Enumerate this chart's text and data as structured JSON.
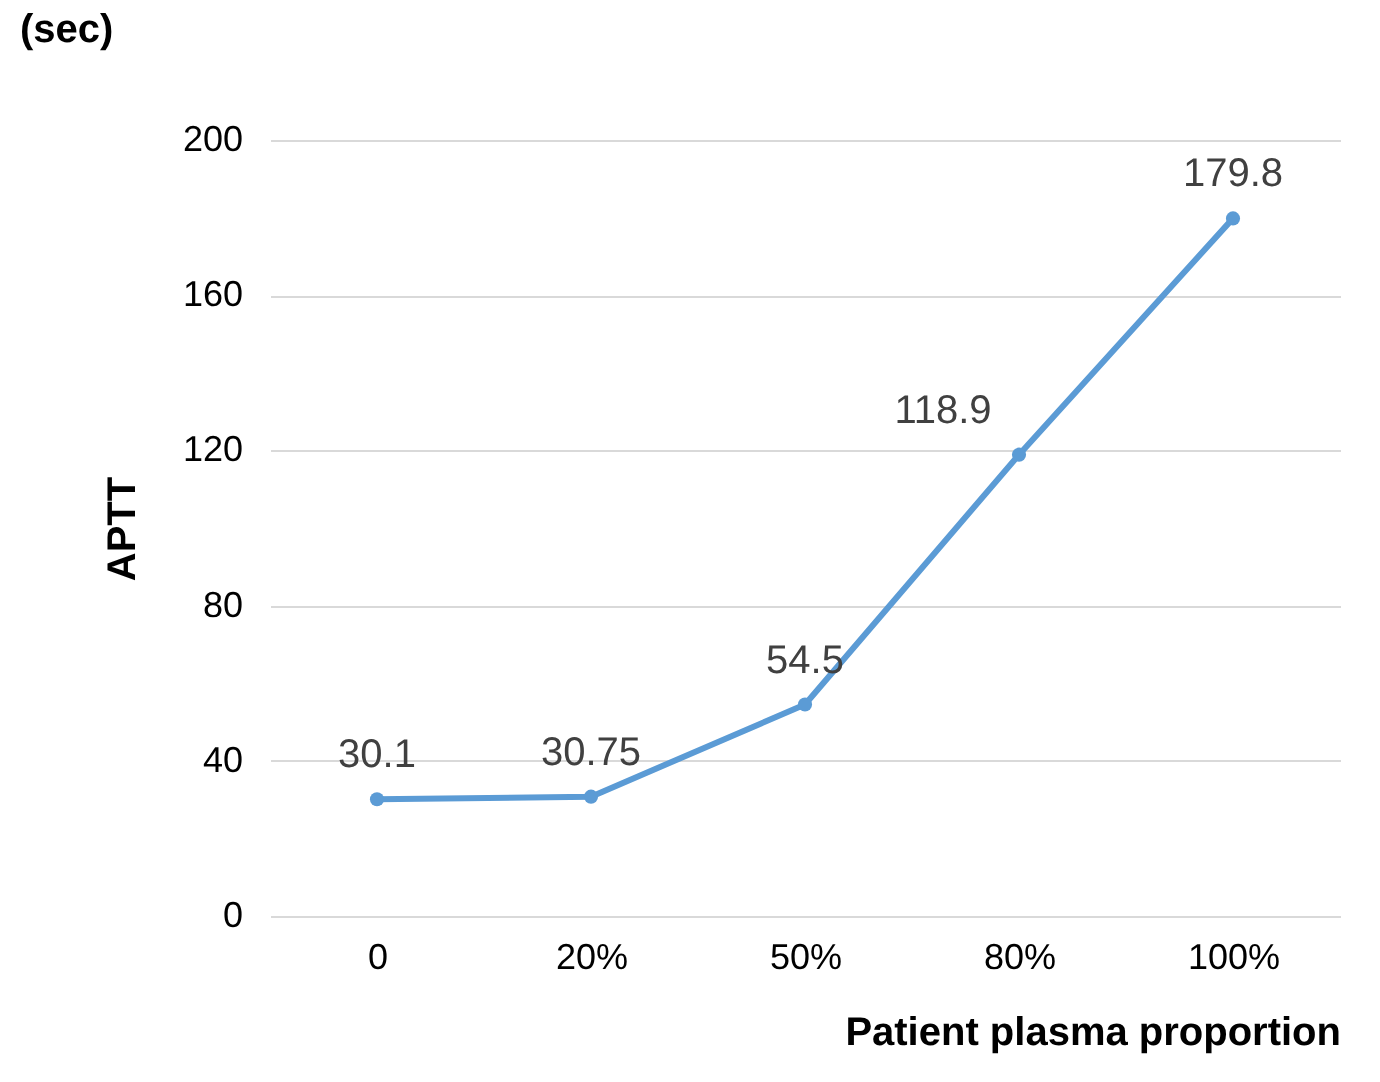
{
  "chart_data": {
    "type": "line",
    "ylabel": "APTT",
    "xlabel": "Patient plasma proportion",
    "annotations": [
      "(sec)"
    ],
    "categories": [
      "0",
      "20%",
      "50%",
      "80%",
      "100%"
    ],
    "series": [
      {
        "color": "#5b9bd5",
        "values": [
          30.1,
          30.75,
          54.5,
          118.9,
          179.8
        ]
      }
    ],
    "ylim": [
      0,
      200
    ],
    "yticks": [
      0,
      40,
      80,
      120,
      160,
      200
    ],
    "grid": "y",
    "marker": "circle",
    "line_style": "solid",
    "data_labels": true
  }
}
